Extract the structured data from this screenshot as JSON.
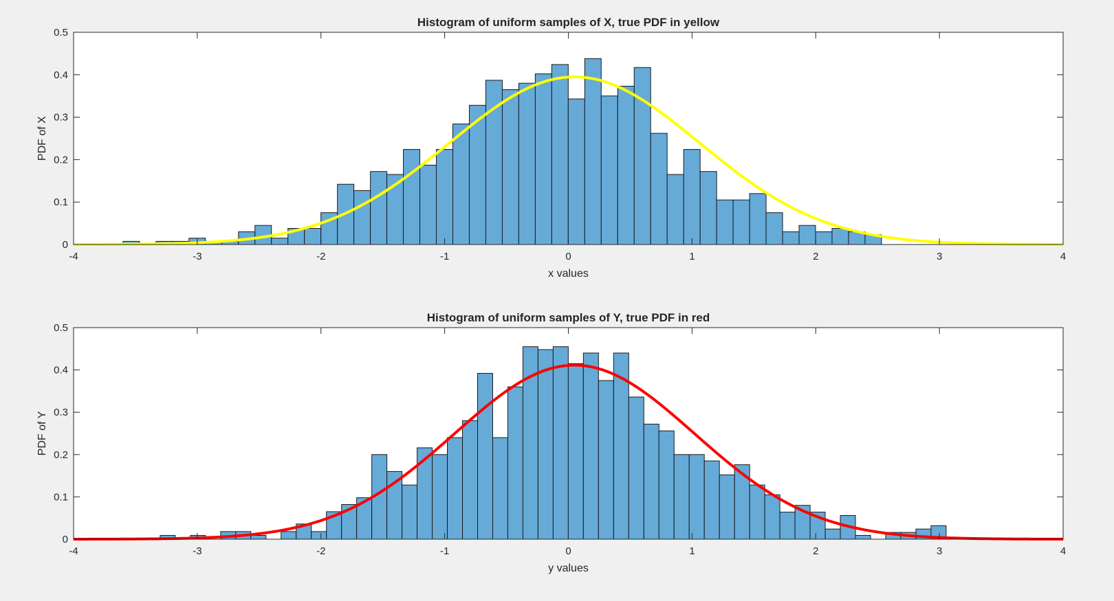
{
  "colors": {
    "figure_bg": "#f0f0f0",
    "axes_bg": "#ffffff",
    "bar_fill": "#66aad8",
    "bar_edge": "#1a1a1a",
    "axis": "#262626"
  },
  "chart_data": [
    {
      "type": "bar",
      "title": "Histogram of uniform samples of X, true PDF in yellow",
      "xlabel": "x values",
      "ylabel": "PDF of X",
      "xlim": [
        -4,
        4
      ],
      "ylim": [
        0,
        0.5
      ],
      "xticks": [
        -4,
        -3,
        -2,
        -1,
        0,
        1,
        2,
        3,
        4
      ],
      "yticks": [
        0,
        0.1,
        0.2,
        0.3,
        0.4,
        0.5
      ],
      "grid": false,
      "bin_edges_start": -3.6,
      "bin_width": 0.1333,
      "values": [
        0.0075,
        0,
        0.0075,
        0.0075,
        0.015,
        0.0075,
        0.0075,
        0.03,
        0.045,
        0.015,
        0.038,
        0.038,
        0.075,
        0.142,
        0.127,
        0.172,
        0.165,
        0.224,
        0.187,
        0.224,
        0.284,
        0.328,
        0.387,
        0.365,
        0.38,
        0.402,
        0.424,
        0.343,
        0.438,
        0.35,
        0.373,
        0.417,
        0.262,
        0.165,
        0.224,
        0.172,
        0.105,
        0.105,
        0.12,
        0.075,
        0.03,
        0.045,
        0.03,
        0.038,
        0.03,
        0.023
      ],
      "curve": {
        "name": "true PDF",
        "color": "#ffff00",
        "mean": 0.05,
        "std": 1.01,
        "scale": 1.0
      }
    },
    {
      "type": "bar",
      "title": "Histogram of uniform samples of Y, true PDF in red",
      "xlabel": "y values",
      "ylabel": "PDF of Y",
      "xlim": [
        -4,
        4
      ],
      "ylim": [
        0,
        0.5
      ],
      "xticks": [
        -4,
        -3,
        -2,
        -1,
        0,
        1,
        2,
        3,
        4
      ],
      "yticks": [
        0,
        0.1,
        0.2,
        0.3,
        0.4,
        0.5
      ],
      "grid": false,
      "bin_edges_start": -3.3,
      "bin_width": 0.1222,
      "values": [
        0.009,
        0,
        0.009,
        0,
        0.018,
        0.018,
        0.009,
        0,
        0.018,
        0.036,
        0.018,
        0.065,
        0.082,
        0.098,
        0.2,
        0.16,
        0.128,
        0.216,
        0.2,
        0.24,
        0.28,
        0.392,
        0.24,
        0.36,
        0.455,
        0.448,
        0.455,
        0.415,
        0.44,
        0.375,
        0.44,
        0.336,
        0.272,
        0.256,
        0.2,
        0.2,
        0.185,
        0.152,
        0.176,
        0.128,
        0.105,
        0.064,
        0.08,
        0.064,
        0.024,
        0.056,
        0.009,
        0,
        0.016,
        0.016,
        0.024,
        0.032
      ],
      "curve": {
        "name": "true PDF",
        "color": "#ff0000",
        "mean": 0.05,
        "std": 0.97,
        "scale": 1.0
      }
    }
  ]
}
